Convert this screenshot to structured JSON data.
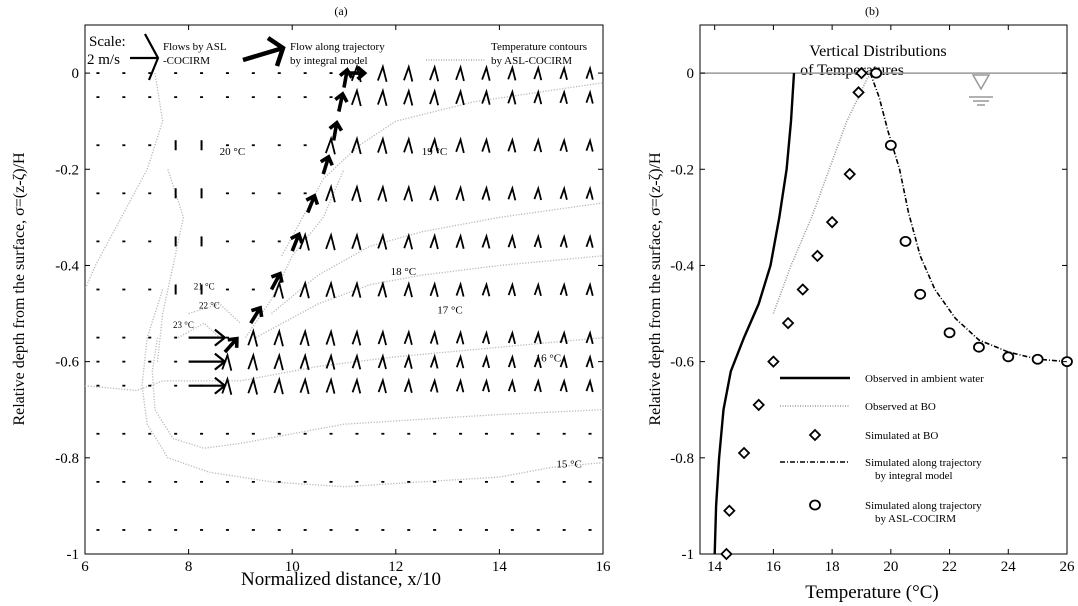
{
  "chart_data": [
    {
      "type": "vector-field",
      "panel_label": "(a)",
      "xlabel": "Normalized distance, x/10",
      "ylabel": "Relative depth from the surface,  σ=(z-ζ)/H",
      "xlim": [
        6,
        16
      ],
      "ylim": [
        -1,
        0.1
      ],
      "xticks": [
        6,
        8,
        10,
        12,
        14,
        16
      ],
      "yticks": [
        0,
        -0.2,
        -0.4,
        -0.6,
        -0.8,
        -1
      ],
      "ytick_labels": [
        "0",
        "-0.2",
        "-0.4",
        "-0.6",
        "-0.8",
        "-1"
      ],
      "legend": {
        "scale_label_1": "Scale:",
        "scale_label_2": "2 m/s",
        "flows_asl_1": "Flows by ASL",
        "flows_asl_2": "-COCIRM",
        "flow_traj_1": "Flow along trajectory",
        "flow_traj_2": "by integral model",
        "temp_cont_1": "Temperature contours",
        "temp_cont_2": "by ASL-COCIRM"
      },
      "field_levels": [
        0,
        -0.05,
        -0.15,
        -0.25,
        -0.35,
        -0.45,
        -0.55,
        -0.6,
        -0.65,
        -0.75,
        -0.85,
        -0.95
      ],
      "field_x_start": 6.25,
      "field_x_end": 15.75,
      "field_x_step": 0.5,
      "outfall_jets": {
        "x_start": 8,
        "x_end": 8.7,
        "levels": [
          -0.55,
          -0.6,
          -0.65
        ]
      },
      "trajectory": {
        "x": [
          8.7,
          9.2,
          9.6,
          10.0,
          10.3,
          10.6,
          10.8,
          10.9,
          11.0,
          11.05,
          11.1
        ],
        "y": [
          -0.58,
          -0.52,
          -0.45,
          -0.37,
          -0.29,
          -0.21,
          -0.14,
          -0.08,
          -0.03,
          0,
          0
        ]
      },
      "contour_labels": [
        {
          "text": "20 °C",
          "x": 8.6,
          "y": -0.17
        },
        {
          "text": "19 °C",
          "x": 12.5,
          "y": -0.17
        },
        {
          "text": "18 °C",
          "x": 11.9,
          "y": -0.42
        },
        {
          "text": "17 °C",
          "x": 12.8,
          "y": -0.5
        },
        {
          "text": "16 °C",
          "x": 14.7,
          "y": -0.6
        },
        {
          "text": "15 °C",
          "x": 15.1,
          "y": -0.82
        },
        {
          "text": "21 °C",
          "x": 8.1,
          "y": -0.45
        },
        {
          "text": "22 °C",
          "x": 8.2,
          "y": -0.49
        },
        {
          "text": "23 °C",
          "x": 7.7,
          "y": -0.53
        }
      ],
      "contours": [
        {
          "x": [
            7.35,
            7.5,
            7.2,
            6.7,
            6.2,
            6.0
          ],
          "y": [
            0,
            -0.1,
            -0.2,
            -0.3,
            -0.4,
            -0.45
          ]
        },
        {
          "x": [
            7.6,
            7.9,
            7.7,
            7.5,
            7.4
          ],
          "y": [
            -0.2,
            -0.3,
            -0.4,
            -0.5,
            -0.6
          ]
        },
        {
          "x": [
            7.5,
            7.2,
            7.1,
            7.2,
            7.6,
            8.4,
            9.6,
            11.0,
            12.5,
            14.0,
            15.0,
            16.0
          ],
          "y": [
            -0.45,
            -0.55,
            -0.65,
            -0.73,
            -0.8,
            -0.83,
            -0.85,
            -0.86,
            -0.85,
            -0.84,
            -0.82,
            -0.81
          ]
        },
        {
          "x": [
            7.4,
            7.3,
            7.35,
            7.7,
            8.3,
            9.0,
            10.0,
            11.0,
            12.5,
            14.0,
            16.0
          ],
          "y": [
            -0.55,
            -0.62,
            -0.7,
            -0.76,
            -0.78,
            -0.77,
            -0.75,
            -0.73,
            -0.72,
            -0.71,
            -0.7
          ]
        },
        {
          "x": [
            6.0,
            7.0,
            7.5,
            9.0,
            10.5,
            12.0,
            14.0,
            16.0
          ],
          "y": [
            -0.65,
            -0.66,
            -0.64,
            -0.64,
            -0.61,
            -0.59,
            -0.57,
            -0.55
          ]
        },
        {
          "x": [
            9.3,
            10.5,
            11.5,
            12.5,
            14.0,
            16.0
          ],
          "y": [
            -0.55,
            -0.48,
            -0.44,
            -0.42,
            -0.4,
            -0.38
          ]
        },
        {
          "x": [
            9.6,
            10.5,
            11.5,
            12.5,
            14.0,
            16.0
          ],
          "y": [
            -0.5,
            -0.42,
            -0.36,
            -0.33,
            -0.3,
            -0.27
          ]
        },
        {
          "x": [
            9.8,
            10.2,
            10.6,
            11.3,
            12.0,
            13.5,
            16.0
          ],
          "y": [
            -0.38,
            -0.3,
            -0.22,
            -0.15,
            -0.1,
            -0.06,
            -0.02
          ]
        },
        {
          "x": [
            9.1,
            9.6,
            10.0,
            10.6,
            11.0
          ],
          "y": [
            -0.55,
            -0.47,
            -0.38,
            -0.3,
            -0.2
          ]
        },
        {
          "x": [
            8.0,
            8.6,
            9.0
          ],
          "y": [
            -0.5,
            -0.48,
            -0.52
          ]
        },
        {
          "x": [
            7.8,
            8.3,
            8.6
          ],
          "y": [
            -0.55,
            -0.52,
            -0.55
          ]
        }
      ]
    },
    {
      "type": "line",
      "panel_label": "(b)",
      "title_1": "Vertical Distributions",
      "title_2": "of Temperatures",
      "xlabel": "Temperature (°C)",
      "ylabel": "Relative depth from the surface,  σ=(z-ζ)/H",
      "xlim": [
        13.5,
        26
      ],
      "ylim": [
        -1,
        0.1
      ],
      "xticks": [
        14,
        16,
        18,
        20,
        22,
        24,
        26
      ],
      "yticks": [
        0,
        -0.2,
        -0.4,
        -0.6,
        -0.8,
        -1
      ],
      "ytick_labels": [
        "0",
        "-0.2",
        "-0.4",
        "-0.6",
        "-0.8",
        "-1"
      ],
      "surface_level": 0,
      "series": [
        {
          "name": "Observed in ambient water",
          "style": "solid",
          "x": [
            14.0,
            14.05,
            14.15,
            14.3,
            14.55,
            15.0,
            15.5,
            15.9,
            16.2,
            16.45,
            16.6,
            16.65,
            16.7
          ],
          "y": [
            -1.0,
            -0.9,
            -0.8,
            -0.7,
            -0.62,
            -0.55,
            -0.48,
            -0.4,
            -0.3,
            -0.2,
            -0.1,
            -0.05,
            0.0
          ]
        },
        {
          "name": "Observed at BO",
          "style": "dotted",
          "x": [
            16.0,
            16.6,
            17.3,
            17.9,
            18.5,
            18.9,
            19.2,
            19.4
          ],
          "y": [
            -0.5,
            -0.4,
            -0.3,
            -0.2,
            -0.1,
            -0.05,
            -0.01,
            0.0
          ]
        },
        {
          "name": "Simulated at BO",
          "style": "diamond",
          "x": [
            14.4,
            14.5,
            15.0,
            15.5,
            16.0,
            16.5,
            17.0,
            17.5,
            18.0,
            18.6,
            18.9,
            19.0
          ],
          "y": [
            -1.0,
            -0.91,
            -0.79,
            -0.69,
            -0.6,
            -0.52,
            -0.45,
            -0.38,
            -0.31,
            -0.21,
            -0.04,
            0.0
          ]
        },
        {
          "name": "Simulated along trajectory",
          "name_2": "by integral model",
          "style": "dashdot",
          "x": [
            19.3,
            19.6,
            19.9,
            20.3,
            20.6,
            21.0,
            21.5,
            22.2,
            23.0,
            24.0,
            25.0,
            26.0
          ],
          "y": [
            0.0,
            -0.05,
            -0.12,
            -0.2,
            -0.29,
            -0.38,
            -0.45,
            -0.51,
            -0.555,
            -0.58,
            -0.595,
            -0.6
          ]
        },
        {
          "name": "Simulated along trajectory",
          "name_2": "by ASL-COCIRM",
          "style": "circle",
          "x": [
            19.5,
            20.0,
            20.5,
            21.0,
            22.0,
            23.0,
            24.0,
            25.0,
            26.0
          ],
          "y": [
            0.0,
            -0.15,
            -0.35,
            -0.46,
            -0.54,
            -0.57,
            -0.59,
            -0.595,
            -0.6
          ]
        }
      ]
    }
  ]
}
